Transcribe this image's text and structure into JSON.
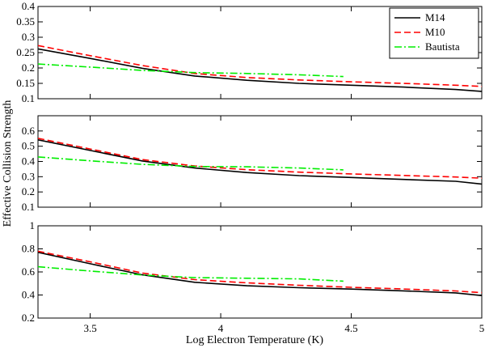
{
  "chart_data": {
    "type": "line",
    "xlabel": "Log Electron Temperature (K)",
    "ylabel": "Effective Collision Strength",
    "xlim": [
      3.3,
      5.0
    ],
    "xticks": [
      3.5,
      4,
      4.5,
      5
    ],
    "xtick_labels": [
      "3.5",
      "4",
      "4.5",
      "5"
    ],
    "legend": {
      "placement": "top-right",
      "entries": [
        "M14",
        "M10",
        "Bautista"
      ]
    },
    "series_styles": [
      {
        "name": "M14",
        "color": "#000000",
        "dash": "solid"
      },
      {
        "name": "M10",
        "color": "#ff0000",
        "dash": "dashed"
      },
      {
        "name": "Bautista",
        "color": "#00ee00",
        "dash": "dash-dot"
      }
    ],
    "panels": [
      {
        "ylim": [
          0.1,
          0.4
        ],
        "yticks": [
          0.1,
          0.15,
          0.2,
          0.25,
          0.3,
          0.35,
          0.4
        ],
        "ytick_labels": [
          "0.1",
          "0.15",
          "0.2",
          "0.25",
          "0.3",
          "0.35",
          "0.4"
        ],
        "series": [
          {
            "name": "M14",
            "x": [
              3.3,
              3.5,
              3.7,
              3.9,
              4.1,
              4.3,
              4.5,
              4.7,
              4.9,
              5.0
            ],
            "y": [
              0.262,
              0.231,
              0.199,
              0.174,
              0.16,
              0.15,
              0.144,
              0.138,
              0.13,
              0.124
            ]
          },
          {
            "name": "M10",
            "x": [
              3.3,
              3.5,
              3.7,
              3.9,
              4.1,
              4.3,
              4.5,
              4.7,
              4.9,
              5.0
            ],
            "y": [
              0.273,
              0.24,
              0.208,
              0.182,
              0.169,
              0.161,
              0.155,
              0.15,
              0.144,
              0.14
            ]
          },
          {
            "name": "Bautista",
            "x": [
              3.3,
              3.5,
              3.7,
              3.9,
              4.1,
              4.3,
              4.47
            ],
            "y": [
              0.213,
              0.203,
              0.192,
              0.185,
              0.182,
              0.178,
              0.172
            ]
          }
        ]
      },
      {
        "ylim": [
          0.1,
          0.7
        ],
        "yticks": [
          0.1,
          0.2,
          0.3,
          0.4,
          0.5,
          0.6
        ],
        "ytick_labels": [
          "0.1",
          "0.2",
          "0.3",
          "0.4",
          "0.5",
          "0.6"
        ],
        "series": [
          {
            "name": "M14",
            "x": [
              3.3,
              3.5,
              3.7,
              3.9,
              4.1,
              4.3,
              4.5,
              4.7,
              4.9,
              5.0
            ],
            "y": [
              0.542,
              0.472,
              0.403,
              0.357,
              0.327,
              0.307,
              0.295,
              0.282,
              0.27,
              0.252
            ]
          },
          {
            "name": "M10",
            "x": [
              3.3,
              3.5,
              3.7,
              3.9,
              4.1,
              4.3,
              4.5,
              4.7,
              4.9,
              5.0
            ],
            "y": [
              0.552,
              0.482,
              0.412,
              0.37,
              0.346,
              0.33,
              0.318,
              0.308,
              0.298,
              0.29
            ]
          },
          {
            "name": "Bautista",
            "x": [
              3.3,
              3.5,
              3.7,
              3.9,
              4.1,
              4.3,
              4.47
            ],
            "y": [
              0.43,
              0.404,
              0.381,
              0.367,
              0.365,
              0.357,
              0.345
            ]
          }
        ]
      },
      {
        "ylim": [
          0.2,
          1.0
        ],
        "yticks": [
          0.2,
          0.4,
          0.6,
          0.8,
          1.0
        ],
        "ytick_labels": [
          "0.2",
          "0.4",
          "0.6",
          "0.8",
          "1"
        ],
        "series": [
          {
            "name": "M14",
            "x": [
              3.3,
              3.5,
              3.7,
              3.9,
              4.1,
              4.3,
              4.5,
              4.7,
              4.9,
              5.0
            ],
            "y": [
              0.77,
              0.671,
              0.575,
              0.51,
              0.48,
              0.463,
              0.451,
              0.436,
              0.418,
              0.395
            ]
          },
          {
            "name": "M10",
            "x": [
              3.3,
              3.5,
              3.7,
              3.9,
              4.1,
              4.3,
              4.5,
              4.7,
              4.9,
              5.0
            ],
            "y": [
              0.78,
              0.688,
              0.59,
              0.533,
              0.505,
              0.484,
              0.467,
              0.452,
              0.435,
              0.42
            ]
          },
          {
            "name": "Bautista",
            "x": [
              3.3,
              3.5,
              3.7,
              3.9,
              4.1,
              4.3,
              4.47
            ],
            "y": [
              0.645,
              0.608,
              0.573,
              0.551,
              0.545,
              0.54,
              0.52
            ]
          }
        ]
      }
    ]
  }
}
